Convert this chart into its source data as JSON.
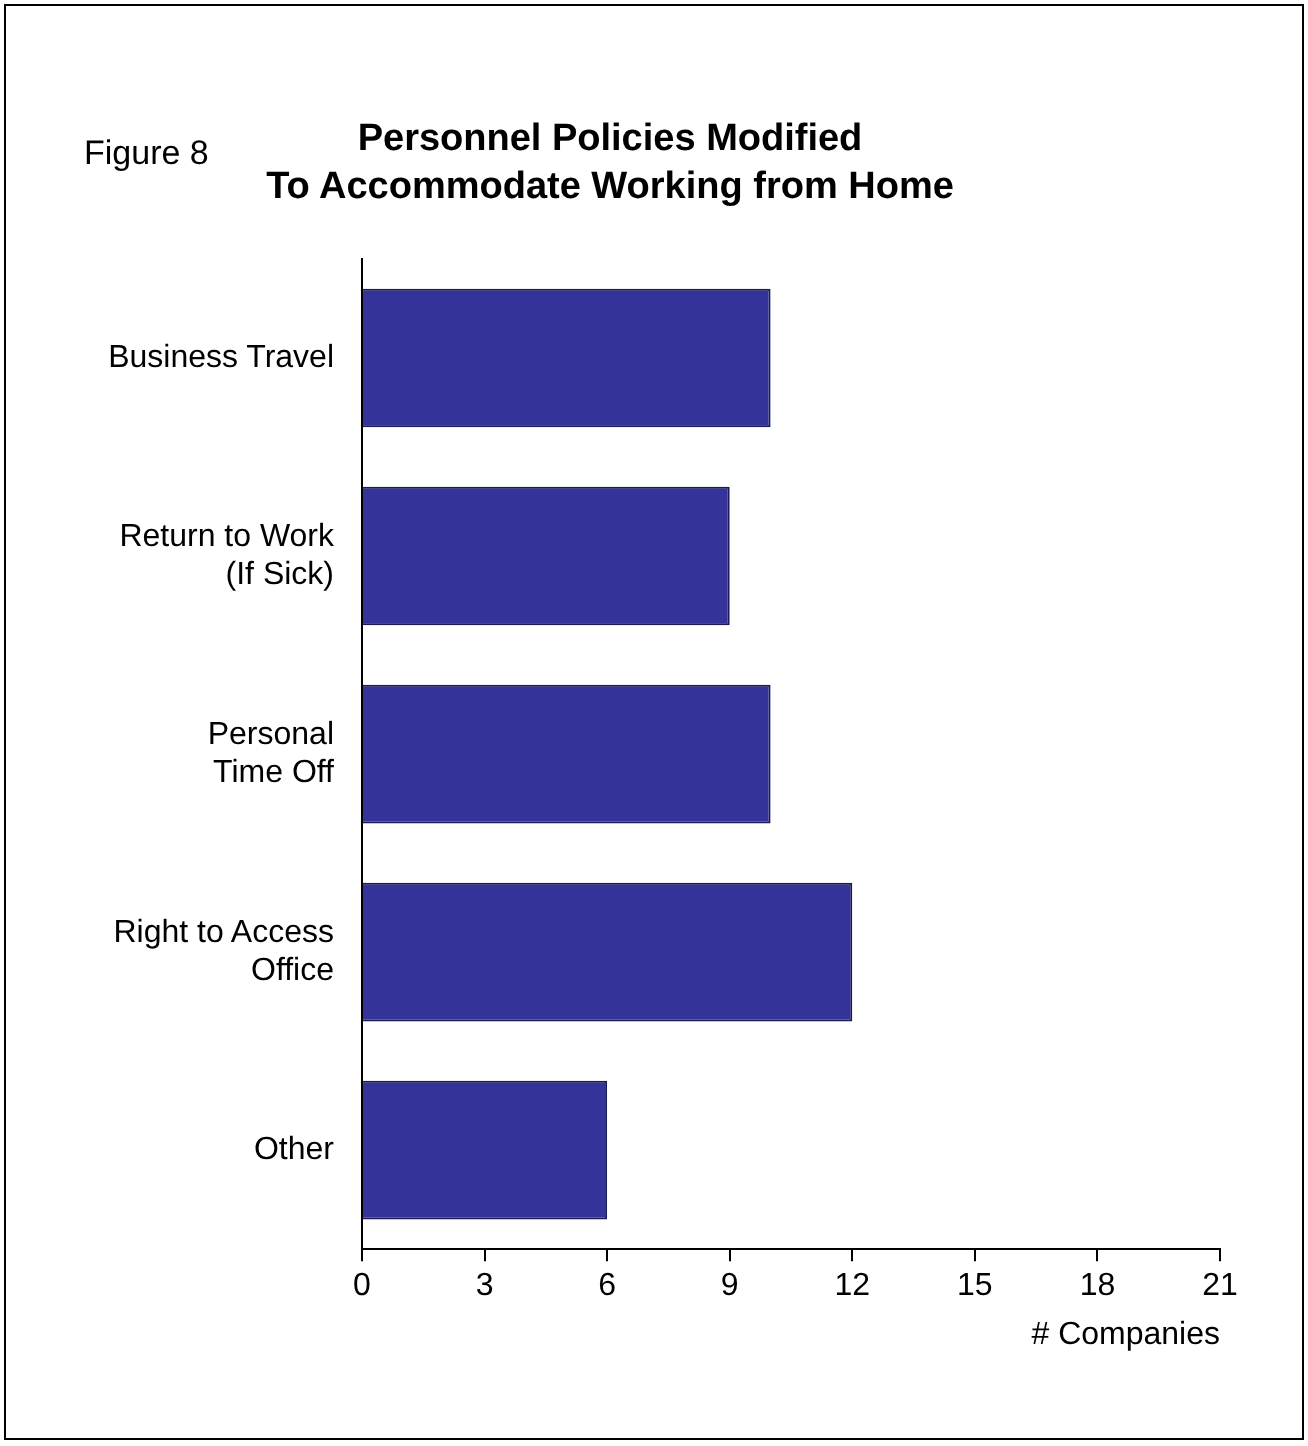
{
  "chart_data": {
    "type": "bar",
    "orientation": "horizontal",
    "title": "Personnel Policies Modified\nTo Accommodate Working from Home",
    "xlabel": "# Companies",
    "annotations": [
      "Figure 8"
    ],
    "categories": [
      "Business Travel",
      "Return to Work\n(If Sick)",
      "Personal\nTime Off",
      "Right to Access\nOffice",
      "Other"
    ],
    "values": [
      10,
      9,
      10,
      12,
      6
    ],
    "color": "#333399",
    "xlim": [
      0,
      21
    ],
    "xticks": [
      0,
      3,
      6,
      9,
      12,
      15,
      18,
      21
    ],
    "grid": false,
    "legend": false
  }
}
